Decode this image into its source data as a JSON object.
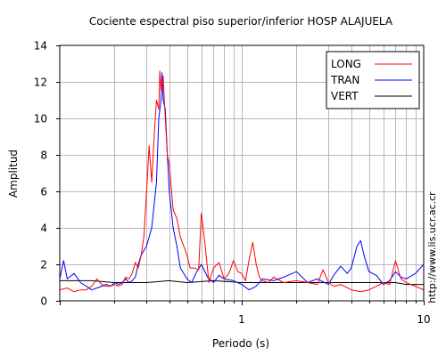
{
  "chart_data": {
    "type": "line",
    "title": "Cociente espectral piso superior/inferior  HOSP ALAJUELA",
    "xlabel": "Periodo (s)",
    "ylabel": "Amplitud",
    "side_text": "http://www.lis.ucr.ac.cr",
    "x_scale": "log",
    "xlim": [
      0.1,
      10
    ],
    "ylim": [
      0,
      14
    ],
    "x_tick_labels": [
      "1",
      "10"
    ],
    "y_ticks": [
      0,
      2,
      4,
      6,
      8,
      10,
      12,
      14
    ],
    "grid": true,
    "legend_position": "top-right",
    "series": [
      {
        "name": "LONG",
        "color": "#ff0000",
        "x": [
          0.1,
          0.11,
          0.12,
          0.13,
          0.14,
          0.15,
          0.16,
          0.17,
          0.18,
          0.19,
          0.2,
          0.21,
          0.22,
          0.23,
          0.24,
          0.25,
          0.26,
          0.27,
          0.28,
          0.29,
          0.3,
          0.31,
          0.32,
          0.33,
          0.34,
          0.35,
          0.355,
          0.36,
          0.37,
          0.38,
          0.39,
          0.4,
          0.41,
          0.42,
          0.44,
          0.46,
          0.48,
          0.5,
          0.52,
          0.55,
          0.58,
          0.6,
          0.63,
          0.66,
          0.7,
          0.75,
          0.8,
          0.85,
          0.9,
          0.95,
          1.0,
          1.05,
          1.1,
          1.15,
          1.2,
          1.25,
          1.3,
          1.4,
          1.5,
          1.7,
          2.0,
          2.3,
          2.6,
          2.8,
          3.0,
          3.2,
          3.5,
          4.0,
          4.5,
          5.0,
          5.5,
          6.0,
          6.5,
          7.0,
          7.5,
          8.0,
          9.0,
          10.0
        ],
        "y": [
          0.6,
          0.7,
          0.5,
          0.6,
          0.6,
          0.8,
          1.2,
          0.9,
          0.8,
          0.8,
          0.9,
          0.8,
          0.9,
          1.3,
          1.2,
          1.5,
          2.1,
          1.8,
          2.5,
          3.5,
          6.0,
          8.5,
          6.5,
          9.0,
          11.0,
          10.5,
          12.6,
          11.5,
          12.3,
          10.0,
          8.0,
          7.5,
          6.2,
          5.0,
          4.5,
          3.5,
          3.0,
          2.5,
          1.8,
          1.8,
          1.7,
          4.8,
          3.0,
          1.0,
          1.8,
          2.1,
          1.2,
          1.5,
          2.2,
          1.6,
          1.5,
          1.1,
          2.3,
          3.2,
          2.0,
          1.3,
          1.1,
          1.0,
          1.3,
          1.0,
          1.1,
          1.0,
          0.9,
          1.7,
          1.0,
          0.8,
          0.9,
          0.6,
          0.5,
          0.6,
          0.8,
          1.0,
          0.9,
          2.2,
          1.2,
          1.0,
          0.8,
          0.6
        ]
      },
      {
        "name": "TRAN",
        "color": "#0000ff",
        "x": [
          0.1,
          0.105,
          0.11,
          0.12,
          0.13,
          0.14,
          0.15,
          0.16,
          0.17,
          0.18,
          0.19,
          0.2,
          0.21,
          0.22,
          0.23,
          0.24,
          0.25,
          0.26,
          0.27,
          0.28,
          0.3,
          0.32,
          0.34,
          0.35,
          0.36,
          0.365,
          0.37,
          0.38,
          0.39,
          0.4,
          0.41,
          0.42,
          0.44,
          0.46,
          0.48,
          0.5,
          0.53,
          0.56,
          0.6,
          0.65,
          0.7,
          0.75,
          0.8,
          0.9,
          1.0,
          1.1,
          1.2,
          1.3,
          1.5,
          1.7,
          2.0,
          2.3,
          2.6,
          3.0,
          3.2,
          3.5,
          3.8,
          4.0,
          4.3,
          4.5,
          4.7,
          5.0,
          5.5,
          6.0,
          6.5,
          7.0,
          7.5,
          8.0,
          9.0,
          10.0
        ],
        "y": [
          1.2,
          2.2,
          1.2,
          1.5,
          1.0,
          0.8,
          0.6,
          0.7,
          0.8,
          0.9,
          0.8,
          1.0,
          0.9,
          1.0,
          1.2,
          1.0,
          1.1,
          1.3,
          2.0,
          2.5,
          3.0,
          4.0,
          6.5,
          10.0,
          11.0,
          12.5,
          11.0,
          10.5,
          8.0,
          6.0,
          5.0,
          4.0,
          3.0,
          1.8,
          1.5,
          1.2,
          1.0,
          1.5,
          2.0,
          1.3,
          1.0,
          1.4,
          1.2,
          1.1,
          0.9,
          0.6,
          0.8,
          1.2,
          1.1,
          1.3,
          1.6,
          1.0,
          1.2,
          0.9,
          1.4,
          1.9,
          1.5,
          1.8,
          3.0,
          3.3,
          2.5,
          1.6,
          1.4,
          0.9,
          1.1,
          1.6,
          1.3,
          1.2,
          1.5,
          2.0
        ]
      },
      {
        "name": "VERT",
        "color": "#000000",
        "x": [
          0.1,
          0.15,
          0.2,
          0.3,
          0.4,
          0.5,
          0.7,
          1.0,
          1.5,
          2.0,
          3.0,
          4.0,
          5.0,
          6.0,
          7.0,
          8.0,
          10.0
        ],
        "y": [
          1.1,
          1.1,
          1.0,
          1.0,
          1.1,
          1.0,
          1.1,
          1.0,
          1.0,
          1.0,
          1.0,
          1.0,
          1.0,
          1.0,
          1.0,
          0.9,
          0.9
        ]
      }
    ]
  }
}
